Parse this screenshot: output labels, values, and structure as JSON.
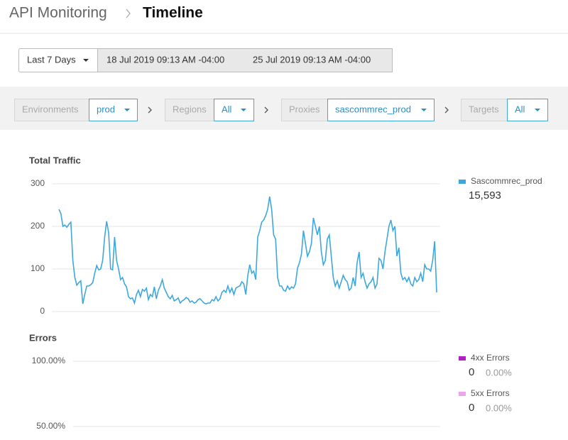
{
  "header": {
    "parent": "API Monitoring",
    "title": "Timeline"
  },
  "date_range": {
    "preset": "Last 7 Days",
    "start": "18 Jul 2019 09:13 AM -04:00",
    "end": "25 Jul 2019 09:13 AM -04:00"
  },
  "filters": [
    {
      "label": "Environments",
      "value": "prod"
    },
    {
      "label": "Regions",
      "value": "All"
    },
    {
      "label": "Proxies",
      "value": "sascommrec_prod"
    },
    {
      "label": "Targets",
      "value": "All"
    }
  ],
  "chart_data": [
    {
      "type": "line",
      "title": "Total Traffic",
      "ylim": [
        0,
        300
      ],
      "yticks": [
        0,
        100,
        200,
        300
      ],
      "grid": true,
      "series": [
        {
          "name": "Sascommrec_prod",
          "color": "#3ea8dc",
          "total": {
            "value": 15593,
            "label": "15,593"
          },
          "values": [
            240,
            230,
            200,
            203,
            198,
            205,
            210,
            120,
            80,
            62,
            68,
            72,
            18,
            40,
            60,
            60,
            63,
            68,
            90,
            108,
            98,
            100,
            120,
            175,
            212,
            185,
            100,
            98,
            175,
            120,
            100,
            75,
            80,
            65,
            58,
            35,
            30,
            32,
            20,
            40,
            50,
            35,
            52,
            48,
            55,
            28,
            40,
            35,
            58,
            30,
            50,
            60,
            75,
            55,
            45,
            35,
            30,
            38,
            25,
            28,
            32,
            20,
            25,
            28,
            33,
            30,
            22,
            25,
            20,
            22,
            28,
            30,
            25,
            20,
            18,
            20,
            20,
            28,
            25,
            35,
            25,
            30,
            45,
            50,
            45,
            60,
            45,
            55,
            40,
            55,
            58,
            60,
            70,
            65,
            40,
            85,
            110,
            90,
            95,
            75,
            175,
            190,
            210,
            215,
            225,
            240,
            270,
            240,
            180,
            170,
            80,
            60,
            60,
            50,
            48,
            60,
            52,
            58,
            55,
            65,
            102,
            115,
            135,
            190,
            160,
            130,
            140,
            160,
            220,
            200,
            180,
            200,
            140,
            110,
            120,
            170,
            180,
            130,
            80,
            60,
            72,
            55,
            70,
            85,
            75,
            70,
            50,
            55,
            80,
            60,
            115,
            140,
            80,
            90,
            70,
            55,
            65,
            70,
            80,
            55,
            65,
            125,
            120,
            100,
            140,
            170,
            200,
            215,
            190,
            200,
            130,
            150,
            90,
            75,
            80,
            70,
            80,
            65,
            60,
            80,
            70,
            75,
            90,
            70,
            110,
            100,
            100,
            95,
            120,
            165,
            45
          ]
        }
      ]
    },
    {
      "type": "line",
      "title": "Errors",
      "ylim": [
        0,
        100
      ],
      "yticks": [
        {
          "value": 50,
          "label": "50.00%"
        },
        {
          "value": 100,
          "label": "100.00%"
        }
      ],
      "grid": true,
      "series": [
        {
          "name": "4xx Errors",
          "color": "#b01fc4",
          "total": 0,
          "percent": {
            "value": 0,
            "label": "0.00%"
          }
        },
        {
          "name": "5xx Errors",
          "color": "#eea4ec",
          "total": 0,
          "percent": {
            "value": 0,
            "label": "0.00%"
          }
        }
      ]
    }
  ]
}
